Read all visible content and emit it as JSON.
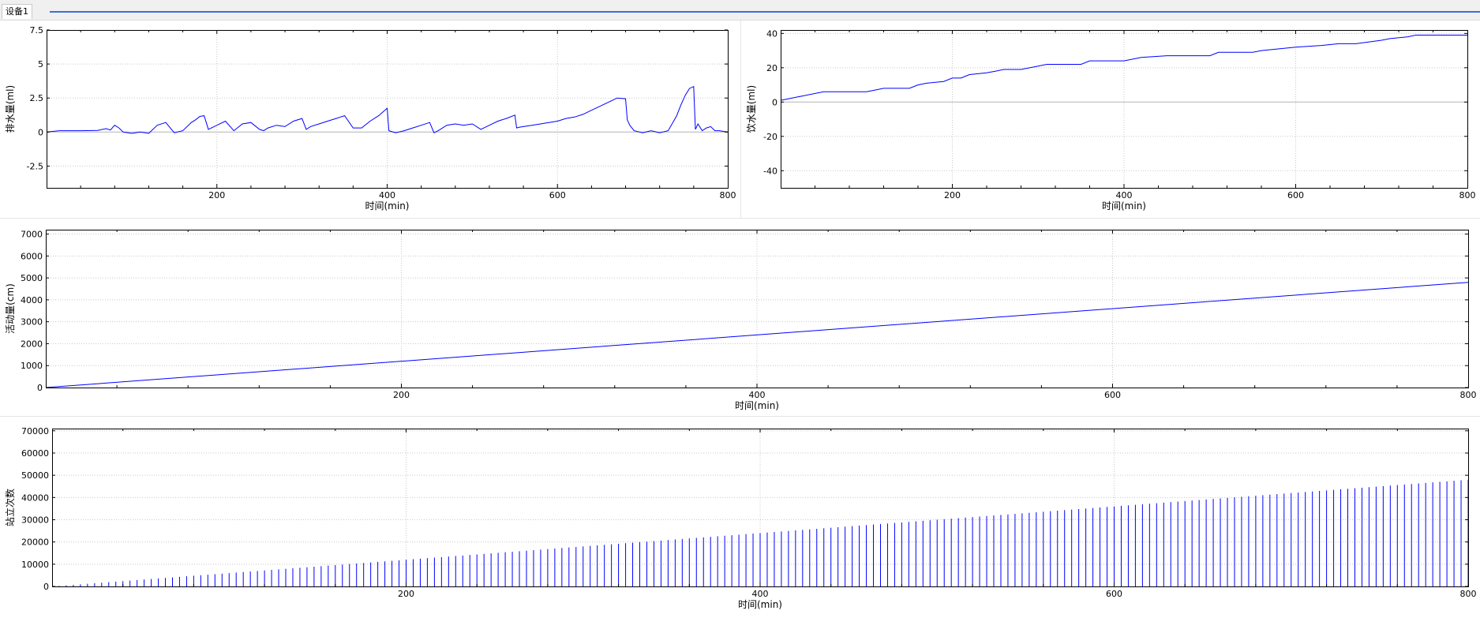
{
  "tab": {
    "label": "设备1"
  },
  "colors": {
    "line": "#0000ff",
    "zero": "#b4b4b4",
    "grid": "#c8c8c8",
    "frame": "#000000"
  },
  "chart_data": [
    {
      "type": "line",
      "ylabel": "排水量(ml)",
      "xlabel": "时间(min)",
      "xlim": [
        0,
        800
      ],
      "ylim": [
        -4.1,
        7.5
      ],
      "xticks": [
        200,
        400,
        600,
        800
      ],
      "yticks": [
        7.5,
        5,
        2.5,
        0,
        -2.5
      ],
      "grid": true,
      "x": [
        0,
        15,
        20,
        40,
        60,
        70,
        75,
        80,
        85,
        90,
        100,
        110,
        120,
        130,
        140,
        150,
        160,
        170,
        175,
        180,
        185,
        190,
        200,
        210,
        220,
        230,
        240,
        250,
        255,
        260,
        270,
        280,
        290,
        300,
        305,
        310,
        320,
        330,
        340,
        345,
        350,
        360,
        370,
        380,
        390,
        400,
        402,
        410,
        420,
        430,
        440,
        450,
        455,
        460,
        470,
        480,
        490,
        500,
        510,
        520,
        530,
        540,
        550,
        552,
        555,
        560,
        570,
        580,
        590,
        600,
        610,
        620,
        630,
        640,
        650,
        660,
        670,
        680,
        682,
        685,
        690,
        700,
        710,
        720,
        730,
        740,
        745,
        750,
        755,
        760,
        762,
        765,
        770,
        775,
        780,
        785,
        790,
        800
      ],
      "y": [
        0,
        0.1,
        0.1,
        0.1,
        0.12,
        0.25,
        0.15,
        0.5,
        0.3,
        0,
        -0.1,
        0,
        -0.1,
        0.5,
        0.7,
        -0.05,
        0.1,
        0.7,
        0.9,
        1.15,
        1.2,
        0.2,
        0.5,
        0.8,
        0.1,
        0.6,
        0.7,
        0.2,
        0.1,
        0.3,
        0.5,
        0.4,
        0.8,
        1.0,
        0.2,
        0.4,
        0.6,
        0.8,
        1.0,
        1.1,
        1.2,
        0.3,
        0.3,
        0.8,
        1.2,
        1.75,
        0.1,
        -0.05,
        0.1,
        0.3,
        0.5,
        0.7,
        -0.05,
        0.1,
        0.5,
        0.6,
        0.5,
        0.6,
        0.2,
        0.5,
        0.8,
        1.0,
        1.25,
        0.3,
        0.35,
        0.4,
        0.5,
        0.6,
        0.7,
        0.8,
        1.0,
        1.1,
        1.3,
        1.6,
        1.9,
        2.2,
        2.5,
        2.45,
        0.9,
        0.5,
        0.1,
        -0.05,
        0.1,
        -0.05,
        0.1,
        1.2,
        2.0,
        2.7,
        3.2,
        3.35,
        0.2,
        0.6,
        0.1,
        0.3,
        0.4,
        0.1,
        0.1,
        0
      ]
    },
    {
      "type": "line",
      "ylabel": "饮水量(ml)",
      "xlabel": "时间(min)",
      "xlim": [
        0,
        800
      ],
      "ylim": [
        -50,
        42
      ],
      "xticks": [
        200,
        400,
        600,
        800
      ],
      "yticks": [
        40,
        20,
        0,
        -20,
        -40
      ],
      "grid": true,
      "x": [
        0,
        20,
        50,
        100,
        110,
        120,
        150,
        160,
        170,
        190,
        200,
        210,
        220,
        240,
        250,
        260,
        280,
        300,
        310,
        350,
        360,
        390,
        400,
        420,
        450,
        500,
        510,
        550,
        560,
        600,
        630,
        650,
        670,
        700,
        710,
        730,
        740,
        800
      ],
      "y": [
        1,
        3,
        6,
        6,
        7,
        8,
        8,
        10,
        11,
        12,
        14,
        14,
        16,
        17,
        18,
        19,
        19,
        21,
        22,
        22,
        24,
        24,
        24,
        26,
        27,
        27,
        29,
        29,
        30,
        32,
        33,
        34,
        34,
        36,
        37,
        38,
        39,
        39
      ]
    },
    {
      "type": "line",
      "ylabel": "活动量(cm)",
      "xlabel": "时间(min)",
      "xlim": [
        0,
        800
      ],
      "ylim": [
        0,
        7200
      ],
      "xticks": [
        200,
        400,
        600,
        800
      ],
      "yticks": [
        7000,
        6000,
        5000,
        4000,
        3000,
        2000,
        1000,
        0
      ],
      "grid": true,
      "x": [
        0,
        800
      ],
      "y": [
        0,
        4800
      ]
    },
    {
      "type": "bar",
      "ylabel": "站立次数",
      "xlabel": "时间(min)",
      "xlim": [
        0,
        800
      ],
      "ylim": [
        0,
        71000
      ],
      "xticks": [
        200,
        400,
        600,
        800
      ],
      "yticks": [
        70000,
        60000,
        50000,
        40000,
        30000,
        20000,
        10000,
        0
      ],
      "grid": true,
      "bar_spacing": 4,
      "y_end": 48000
    }
  ]
}
